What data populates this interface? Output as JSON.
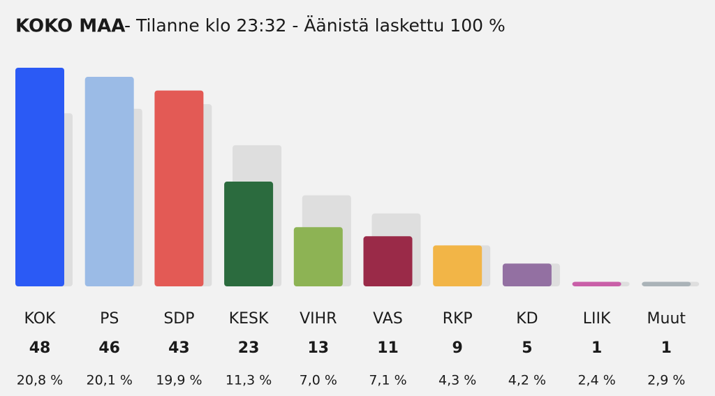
{
  "chart_data": {
    "type": "bar",
    "title": "KOKO MAA",
    "subtitle": "- Tilanne klo 23:32 - Äänistä laskettu 100 %",
    "categories": [
      "KOK",
      "PS",
      "SDP",
      "KESK",
      "VIHR",
      "VAS",
      "RKP",
      "KD",
      "LIIK",
      "Muut"
    ],
    "values": [
      48,
      46,
      43,
      23,
      13,
      11,
      9,
      5,
      1,
      1
    ],
    "previous_values": [
      38,
      39,
      40,
      31,
      20,
      16,
      9,
      5,
      1,
      1
    ],
    "colors": [
      "#2b5af5",
      "#9bbbe6",
      "#e35a55",
      "#2b6b3e",
      "#8db354",
      "#9a2a48",
      "#f2b547",
      "#9370a2",
      "#c95fa8",
      "#aab3b8"
    ],
    "previous_color": "#dedede",
    "shares": [
      20.8,
      20.1,
      19.9,
      11.3,
      7.0,
      7.1,
      4.3,
      4.2,
      2.4,
      2.9
    ],
    "share_labels": [
      "20,8 %",
      "20,1 %",
      "19,9 %",
      "11,3 %",
      "7,0 %",
      "7,1 %",
      "4,3 %",
      "4,2 %",
      "2,4 %",
      "2,9 %"
    ],
    "ylim": [
      0,
      48
    ]
  }
}
